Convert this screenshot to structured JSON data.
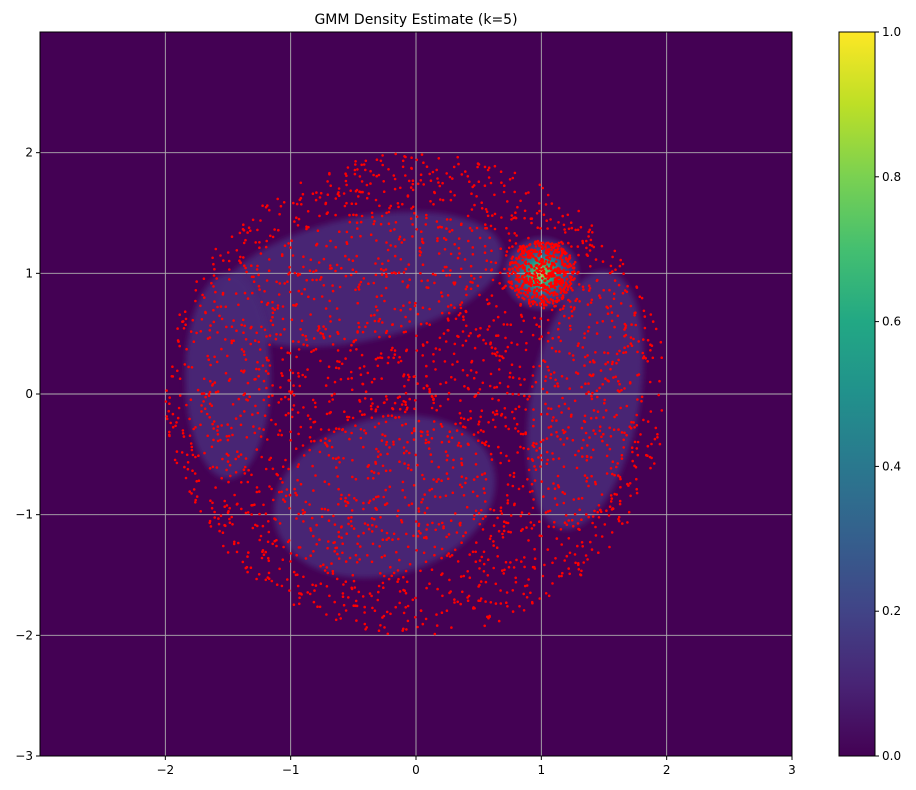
{
  "chart_data": {
    "type": "heatmap",
    "title": "GMM Density Estimate (k=5)",
    "xlabel": "",
    "ylabel": "",
    "xlim": [
      -3,
      3
    ],
    "ylim": [
      -3,
      3
    ],
    "x_ticks": [
      -2,
      -1,
      0,
      1,
      2,
      3
    ],
    "y_ticks": [
      -3,
      -2,
      -1,
      0,
      1,
      2
    ],
    "x_tick_labels": [
      "−2",
      "−1",
      "0",
      "1",
      "2",
      "3"
    ],
    "y_tick_labels": [
      "−3",
      "−2",
      "−1",
      "0",
      "1",
      "2"
    ],
    "grid": true,
    "colormap": "viridis",
    "background_color": "#440154",
    "colorbar": {
      "range": [
        0.0,
        1.0
      ],
      "ticks": [
        0.0,
        0.2,
        0.4,
        0.6,
        0.8,
        1.0
      ],
      "tick_labels": [
        "0.0",
        "0.2",
        "0.4",
        "0.6",
        "0.8",
        "1.0"
      ]
    },
    "density_components": [
      {
        "mean": [
          -0.45,
          0.95
        ],
        "sigma": [
          0.75,
          0.33
        ],
        "angle_deg": -12,
        "value": 0.1
      },
      {
        "mean": [
          -1.5,
          0.15
        ],
        "sigma": [
          0.22,
          0.55
        ],
        "angle_deg": 0,
        "value": 0.1
      },
      {
        "mean": [
          -0.25,
          -0.85
        ],
        "sigma": [
          0.58,
          0.42
        ],
        "angle_deg": -15,
        "value": 0.1
      },
      {
        "mean": [
          1.35,
          -0.05
        ],
        "sigma": [
          0.28,
          0.7
        ],
        "angle_deg": 10,
        "value": 0.1
      },
      {
        "mean": [
          1.0,
          1.0
        ],
        "sigma": [
          0.2,
          0.2
        ],
        "angle_deg": 0,
        "value": 1.0
      }
    ],
    "scatter_series": [
      {
        "color": "#ff0000",
        "pattern": "ring",
        "center": [
          0,
          0
        ],
        "radius_range": [
          0.0,
          2.0
        ],
        "count": 2600
      },
      {
        "color": "#ff0000",
        "pattern": "cluster",
        "center": [
          1.0,
          1.0
        ],
        "radius_range": [
          0.0,
          0.27
        ],
        "count": 500
      }
    ]
  }
}
